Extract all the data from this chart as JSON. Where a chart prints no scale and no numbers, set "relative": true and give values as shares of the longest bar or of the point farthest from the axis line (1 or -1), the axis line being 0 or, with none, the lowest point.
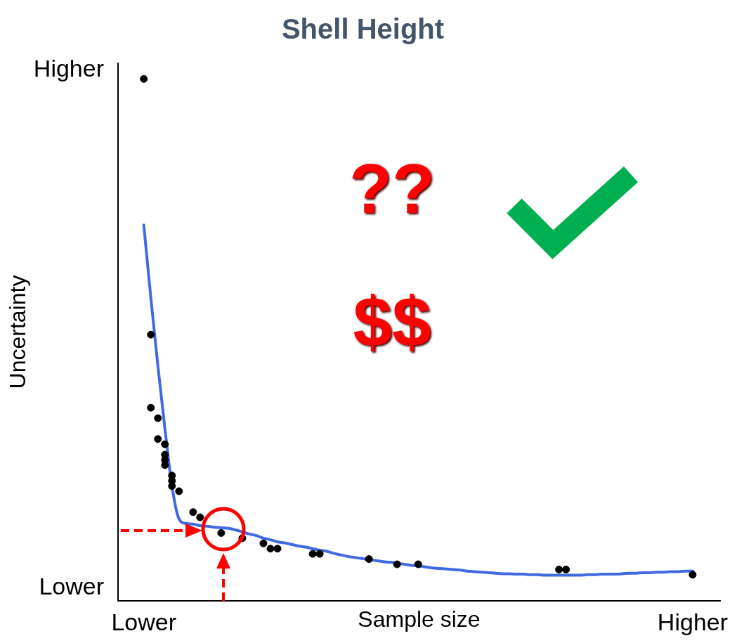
{
  "chart_data": {
    "type": "line",
    "title": "Shell Height",
    "xlabel": "Sample size",
    "ylabel": "Uncertainty",
    "relative": true,
    "categories": [
      "Lower",
      null,
      null,
      null,
      null,
      null,
      null,
      null,
      null,
      null,
      null,
      null,
      null,
      null,
      null,
      null,
      null,
      null,
      null,
      null,
      null,
      null,
      null,
      null,
      null,
      null,
      null,
      null,
      null,
      null,
      null,
      null,
      null,
      null,
      null,
      null,
      null,
      null,
      null,
      null,
      null,
      null,
      null,
      null,
      null,
      null,
      null,
      null,
      null,
      null,
      null,
      null,
      null,
      null,
      null,
      null,
      null,
      null,
      null,
      null,
      null,
      null,
      null,
      null,
      null,
      null,
      null,
      null,
      null,
      null,
      null,
      null,
      null,
      null,
      null,
      null,
      null,
      null,
      "Higher"
    ],
    "series": [
      {
        "color": "#4169e1",
        "marker": "none",
        "values": [
          0.72,
          0.58,
          0.45,
          0.33,
          0.22,
          0.157,
          0.148,
          0.147,
          0.144,
          0.143,
          0.141,
          0.14,
          0.139,
          0.136,
          0.132,
          0.128,
          0.125,
          0.12,
          0.117,
          0.113,
          0.111,
          0.108,
          0.105,
          0.103,
          0.1,
          0.097,
          0.095,
          0.091,
          0.088,
          0.085,
          0.083,
          0.081,
          0.079,
          0.077,
          0.075,
          0.074,
          0.072,
          0.07,
          0.068,
          0.067,
          0.065,
          0.063,
          0.062,
          0.061,
          0.06,
          0.059,
          0.057,
          0.056,
          0.055,
          0.054,
          0.053,
          0.052,
          0.052,
          0.051,
          0.051,
          0.05,
          0.05,
          0.049,
          0.049,
          0.049,
          0.049,
          0.049,
          0.049,
          0.05,
          0.05,
          0.051,
          0.051,
          0.051,
          0.052,
          0.053,
          0.053,
          0.054,
          0.054,
          0.055,
          0.055,
          0.056,
          0.056,
          0.057,
          0.057
        ]
      },
      {
        "type": "scatter",
        "color": "#000000",
        "values": [
          1,
          0.51,
          0.35,
          0.3,
          0.24,
          0.21,
          null,
          0.17,
          0.16,
          null,
          null,
          0.13,
          null,
          null,
          0.12,
          null,
          null,
          0.11,
          0.1,
          0.1,
          null,
          null,
          null,
          null,
          0.09,
          0.09,
          null,
          null,
          null,
          null,
          null,
          null,
          0.08,
          null,
          null,
          null,
          0.07,
          null,
          null,
          0.07,
          null,
          null,
          null,
          null,
          null,
          null,
          null,
          null,
          null,
          null,
          null,
          null,
          null,
          null,
          null,
          null,
          null,
          null,
          null,
          0.06,
          0.06,
          null,
          null,
          null,
          null,
          null,
          null,
          null,
          null,
          null,
          null,
          null,
          null,
          null,
          null,
          null,
          null,
          null,
          0.05
        ]
      },
      {
        "type": "scatter",
        "color": "#000000",
        "values": [
          null,
          0.37,
          0.31,
          0.28,
          0.23,
          null,
          null,
          null,
          null,
          null,
          null,
          null,
          null,
          null,
          null,
          null,
          null,
          null,
          null,
          null,
          null,
          null,
          null,
          null,
          null,
          null,
          null,
          null,
          null,
          null,
          null,
          null,
          null,
          null,
          null,
          null,
          null,
          null,
          null,
          null,
          null,
          null,
          null,
          null,
          null,
          null,
          null,
          null,
          null,
          null,
          null,
          null,
          null,
          null,
          null,
          null,
          null,
          null,
          null,
          null,
          null,
          null,
          null,
          null,
          null,
          null,
          null,
          null,
          null,
          null,
          null,
          null,
          null,
          null,
          null,
          null,
          null,
          null,
          null
        ]
      },
      {
        "type": "scatter",
        "color": "#000000",
        "values": [
          null,
          null,
          null,
          0.27,
          0.22,
          null,
          null,
          null,
          null,
          null,
          null,
          null,
          null,
          null,
          null,
          null,
          null,
          null,
          null,
          null,
          null,
          null,
          null,
          null,
          null,
          null,
          null,
          null,
          null,
          null,
          null,
          null,
          null,
          null,
          null,
          null,
          null,
          null,
          null,
          null,
          null,
          null,
          null,
          null,
          null,
          null,
          null,
          null,
          null,
          null,
          null,
          null,
          null,
          null,
          null,
          null,
          null,
          null,
          null,
          null,
          null,
          null,
          null,
          null,
          null,
          null,
          null,
          null,
          null,
          null,
          null,
          null,
          null,
          null,
          null,
          null,
          null,
          null,
          null
        ]
      },
      {
        "type": "scatter",
        "color": "#000000",
        "values": [
          null,
          null,
          null,
          0.26,
          null,
          null,
          null,
          null,
          null,
          null,
          null,
          null,
          null,
          null,
          null,
          null,
          null,
          null,
          null,
          null,
          null,
          null,
          null,
          null,
          null,
          null,
          null,
          null,
          null,
          null,
          null,
          null,
          null,
          null,
          null,
          null,
          null,
          null,
          null,
          null,
          null,
          null,
          null,
          null,
          null,
          null,
          null,
          null,
          null,
          null,
          null,
          null,
          null,
          null,
          null,
          null,
          null,
          null,
          null,
          null,
          null,
          null,
          null,
          null,
          null,
          null,
          null,
          null,
          null,
          null,
          null,
          null,
          null,
          null,
          null,
          null,
          null,
          null,
          null
        ]
      }
    ],
    "annotations": [
      "Higher",
      "Lower",
      "??",
      "$$"
    ],
    "grid": false,
    "legend": false,
    "marker": "circle",
    "line_style": "solid"
  }
}
